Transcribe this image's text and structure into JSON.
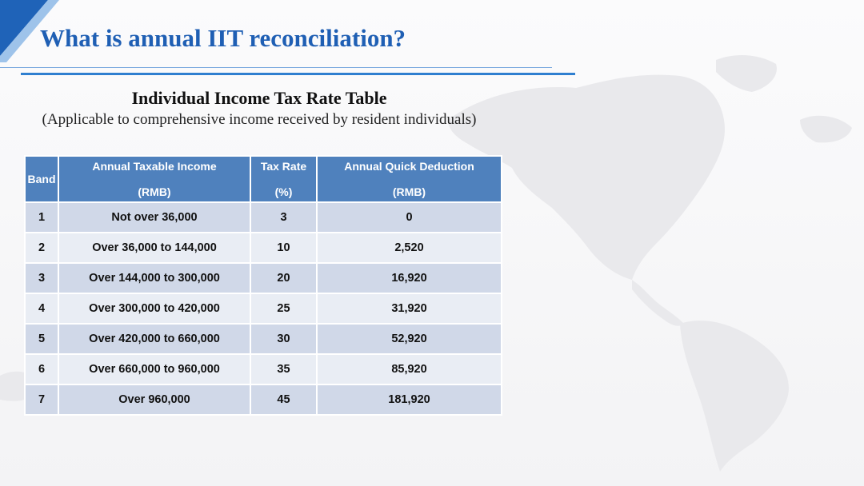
{
  "slide": {
    "title": "What is annual IIT reconciliation?",
    "subtitle": "Individual Income Tax Rate Table",
    "subnote": "(Applicable to comprehensive income received by resident individuals)"
  },
  "table": {
    "headers": {
      "band": "Band",
      "income_line1": "Annual Taxable Income",
      "income_line2": "(RMB)",
      "rate_line1": "Tax Rate",
      "rate_line2": "(%)",
      "deduction_line1": "Annual Quick Deduction",
      "deduction_line2": "(RMB)"
    },
    "rows": [
      {
        "band": "1",
        "income": "Not over 36,000",
        "rate": "3",
        "deduction": "0"
      },
      {
        "band": "2",
        "income": "Over 36,000 to 144,000",
        "rate": "10",
        "deduction": "2,520"
      },
      {
        "band": "3",
        "income": "Over 144,000 to 300,000",
        "rate": "20",
        "deduction": "16,920"
      },
      {
        "band": "4",
        "income": "Over 300,000 to 420,000",
        "rate": "25",
        "deduction": "31,920"
      },
      {
        "band": "5",
        "income": "Over 420,000 to 660,000",
        "rate": "30",
        "deduction": "52,920"
      },
      {
        "band": "6",
        "income": "Over 660,000 to 960,000",
        "rate": "35",
        "deduction": "85,920"
      },
      {
        "band": "7",
        "income": "Over 960,000",
        "rate": "45",
        "deduction": "181,920"
      }
    ]
  },
  "colors": {
    "title": "#1f5fb4",
    "header_bg": "#4f81bd",
    "row_odd": "#d0d8e8",
    "row_even": "#e9edf4",
    "accent_rule": "#2f7fd0"
  }
}
